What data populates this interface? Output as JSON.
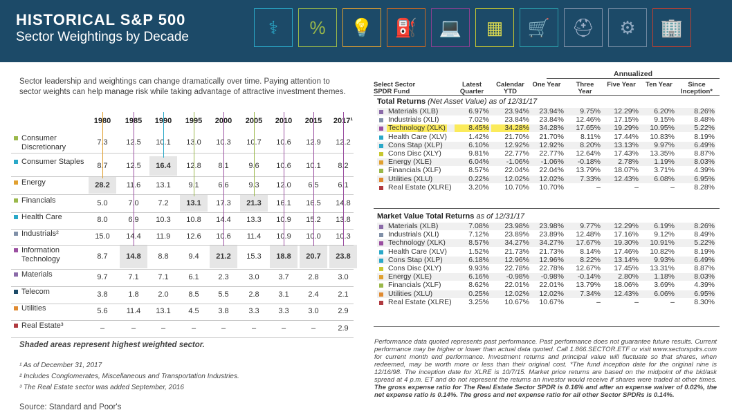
{
  "header": {
    "title": "HISTORICAL S&P 500",
    "subtitle": "Sector Weightings by Decade"
  },
  "intro": "Sector leadership and weightings can change dramatically over time. Paying attention to sector weights can help manage risk while taking advantage of attractive investment themes.",
  "colors": {
    "header_bg": "#1c4a68",
    "shade": "#e6e6e6",
    "highlight": "#fbeb5b"
  },
  "decades": {
    "years": [
      "1980",
      "1985",
      "1990",
      "1995",
      "2000",
      "2005",
      "2010",
      "2015",
      "2017¹"
    ],
    "rows": [
      {
        "name": "Consumer Discretionary",
        "color": "#9ab84a",
        "values": [
          "7.3",
          "12.5",
          "10.1",
          "13.0",
          "10.3",
          "10.7",
          "10.6",
          "12.9",
          "12.2"
        ],
        "max": -1
      },
      {
        "name": "Consumer Staples",
        "color": "#2aa8c8",
        "values": [
          "8.7",
          "12.5",
          "16.4",
          "12.8",
          "8.1",
          "9.6",
          "10.6",
          "10.1",
          "8.2"
        ],
        "max": 2
      },
      {
        "name": "Energy",
        "color": "#e0a030",
        "values": [
          "28.2",
          "11.6",
          "13.1",
          "9.1",
          "6.6",
          "9.3",
          "12.0",
          "6.5",
          "6.1"
        ],
        "max": 0
      },
      {
        "name": "Financials",
        "color": "#9ab84a",
        "values": [
          "5.0",
          "7.0",
          "7.2",
          "13.1",
          "17.3",
          "21.3",
          "16.1",
          "16.5",
          "14.8"
        ],
        "max": 3
      },
      {
        "name": "Health Care",
        "color": "#2aa8c8",
        "values": [
          "8.0",
          "6.9",
          "10.3",
          "10.8",
          "14.4",
          "13.3",
          "10.9",
          "15.2",
          "13.8"
        ],
        "max": -1
      },
      {
        "name": "Industrials²",
        "color": "#8090a8",
        "values": [
          "15.0",
          "14.4",
          "11.9",
          "12.6",
          "10.6",
          "11.4",
          "10.9",
          "10.0",
          "10.3"
        ],
        "max": -1
      },
      {
        "name": "Information Technology",
        "color": "#9a4ea0",
        "values": [
          "8.7",
          "14.8",
          "8.8",
          "9.4",
          "21.2",
          "15.3",
          "18.8",
          "20.7",
          "23.8"
        ],
        "max": 1
      },
      {
        "name": "Materials",
        "color": "#8a6aa8",
        "values": [
          "9.7",
          "7.1",
          "7.1",
          "6.1",
          "2.3",
          "3.0",
          "3.7",
          "2.8",
          "3.0"
        ],
        "max": -1
      },
      {
        "name": "Telecom",
        "color": "#1c4a68",
        "values": [
          "3.8",
          "1.8",
          "2.0",
          "8.5",
          "5.5",
          "2.8",
          "3.1",
          "2.4",
          "2.1"
        ],
        "max": -1
      },
      {
        "name": "Utilities",
        "color": "#e08a30",
        "values": [
          "5.6",
          "11.4",
          "13.1",
          "4.5",
          "3.8",
          "3.3",
          "3.3",
          "3.0",
          "2.9"
        ],
        "max": -1
      },
      {
        "name": "Real Estate³",
        "color": "#b03a40",
        "values": [
          "–",
          "–",
          "–",
          "–",
          "–",
          "–",
          "–",
          "–",
          "2.9"
        ],
        "max": -1
      }
    ],
    "shaded": [
      [
        2,
        0
      ],
      [
        1,
        2
      ],
      [
        3,
        3
      ],
      [
        6,
        4
      ],
      [
        3,
        5
      ],
      [
        6,
        6
      ],
      [
        6,
        7
      ],
      [
        6,
        8
      ],
      [
        6,
        1
      ]
    ]
  },
  "notes": {
    "shading": "Shaded areas represent highest weighted sector.",
    "fn1": "¹ As of December 31, 2017",
    "fn2": "² Includes Conglomerates, Miscellaneous and Transportation Industries.",
    "fn3": "³ The Real Estate sector was added September, 2016",
    "source": "Source: Standard and Poor's"
  },
  "returns": {
    "annualized": "Annualized",
    "headers": [
      "Select Sector SPDR Fund",
      "Latest Quarter",
      "Calendar YTD",
      "One Year",
      "Three Year",
      "Five Year",
      "Ten Year",
      "Since Inception*"
    ],
    "total_title": "Total Returns",
    "total_sub": "(Net Asset Value) as of 12/31/17",
    "market_title": "Market Value Total Returns",
    "market_sub": "as of 12/31/17",
    "total": [
      {
        "name": "Materials (XLB)",
        "color": "#8a6aa8",
        "v": [
          "6.97%",
          "23.94%",
          "23.94%",
          "9.75%",
          "12.29%",
          "6.20%",
          "8.26%"
        ]
      },
      {
        "name": "Industrials (XLI)",
        "color": "#8090a8",
        "v": [
          "7.02%",
          "23.84%",
          "23.84%",
          "12.46%",
          "17.15%",
          "9.15%",
          "8.48%"
        ]
      },
      {
        "name": "Technology (XLK)",
        "color": "#9a4ea0",
        "v": [
          "8.45%",
          "34.28%",
          "34.28%",
          "17.65%",
          "19.29%",
          "10.95%",
          "5.22%"
        ],
        "hl": true
      },
      {
        "name": "Health Care (XLV)",
        "color": "#2aa8c8",
        "v": [
          "1.42%",
          "21.70%",
          "21.70%",
          "8.11%",
          "17.44%",
          "10.83%",
          "8.19%"
        ]
      },
      {
        "name": "Cons Stap (XLP)",
        "color": "#2aa8c8",
        "v": [
          "6.10%",
          "12.92%",
          "12.92%",
          "8.20%",
          "13.13%",
          "9.97%",
          "6.49%"
        ]
      },
      {
        "name": "Cons Disc (XLY)",
        "color": "#c8c830",
        "v": [
          "9.81%",
          "22.77%",
          "22.77%",
          "12.64%",
          "17.43%",
          "13.35%",
          "8.87%"
        ]
      },
      {
        "name": "Energy (XLE)",
        "color": "#e0a030",
        "v": [
          "6.04%",
          "-1.06%",
          "-1.06%",
          "-0.18%",
          "2.78%",
          "1.19%",
          "8.03%"
        ]
      },
      {
        "name": "Financials (XLF)",
        "color": "#9ab84a",
        "v": [
          "8.57%",
          "22.04%",
          "22.04%",
          "13.79%",
          "18.07%",
          "3.71%",
          "4.39%"
        ]
      },
      {
        "name": "Utilities (XLU)",
        "color": "#e08a30",
        "v": [
          "0.22%",
          "12.02%",
          "12.02%",
          "7.33%",
          "12.43%",
          "6.08%",
          "6.95%"
        ]
      },
      {
        "name": "Real Estate (XLRE)",
        "color": "#b03a40",
        "v": [
          "3.20%",
          "10.70%",
          "10.70%",
          "–",
          "–",
          "–",
          "8.28%"
        ]
      }
    ],
    "market": [
      {
        "name": "Materials (XLB)",
        "color": "#8a6aa8",
        "v": [
          "7.08%",
          "23.98%",
          "23.98%",
          "9.77%",
          "12.29%",
          "6.19%",
          "8.26%"
        ]
      },
      {
        "name": "Industrials (XLI)",
        "color": "#8090a8",
        "v": [
          "7.12%",
          "23.89%",
          "23.89%",
          "12.48%",
          "17.16%",
          "9.12%",
          "8.49%"
        ]
      },
      {
        "name": "Technology (XLK)",
        "color": "#9a4ea0",
        "v": [
          "8.57%",
          "34.27%",
          "34.27%",
          "17.67%",
          "19.30%",
          "10.91%",
          "5.22%"
        ]
      },
      {
        "name": "Health Care (XLV)",
        "color": "#2aa8c8",
        "v": [
          "1.52%",
          "21.73%",
          "21.73%",
          "8.14%",
          "17.46%",
          "10.82%",
          "8.19%"
        ]
      },
      {
        "name": "Cons Stap (XLP)",
        "color": "#2aa8c8",
        "v": [
          "6.18%",
          "12.96%",
          "12.96%",
          "8.22%",
          "13.14%",
          "9.93%",
          "6.49%"
        ]
      },
      {
        "name": "Cons Disc (XLY)",
        "color": "#c8c830",
        "v": [
          "9.93%",
          "22.78%",
          "22.78%",
          "12.67%",
          "17.45%",
          "13.31%",
          "8.87%"
        ]
      },
      {
        "name": "Energy (XLE)",
        "color": "#e0a030",
        "v": [
          "6.16%",
          "-0.98%",
          "-0.98%",
          "-0.14%",
          "2.80%",
          "1.18%",
          "8.03%"
        ]
      },
      {
        "name": "Financials (XLF)",
        "color": "#9ab84a",
        "v": [
          "8.62%",
          "22.01%",
          "22.01%",
          "13.79%",
          "18.06%",
          "3.69%",
          "4.39%"
        ]
      },
      {
        "name": "Utilities (XLU)",
        "color": "#e08a30",
        "v": [
          "0.25%",
          "12.02%",
          "12.02%",
          "7.34%",
          "12.43%",
          "6.06%",
          "6.95%"
        ]
      },
      {
        "name": "Real Estate (XLRE)",
        "color": "#b03a40",
        "v": [
          "3.25%",
          "10.67%",
          "10.67%",
          "–",
          "–",
          "–",
          "8.30%"
        ]
      }
    ]
  },
  "disclaimer": {
    "text": "Performance data quoted represents past performance. Past performance does not guarantee future results. Current performance may be higher or lower than actual data quoted. Call 1.866.SECTOR.ETF or visit www.sectorspdrs.com for current month end performance. Investment returns and principal value will fluctuate so that shares, when redeemed, may be worth more or less than their original cost. *The fund inception date for the original nine is 12/16/98. The inception date for XLRE is 10/7/15. Market price returns are based on the midpoint of the bid/ask spread at 4 p.m. ET and do not represent the returns an investor would receive if shares were traded at other times. ",
    "bold": "The gross expense ratio for The Real Estate Sector SPDR is 0.16% and after an expense waiver of 0.02%, the net expense ratio is 0.14%. The gross and net expense ratio for all other Sector SPDRs is 0.14%."
  }
}
